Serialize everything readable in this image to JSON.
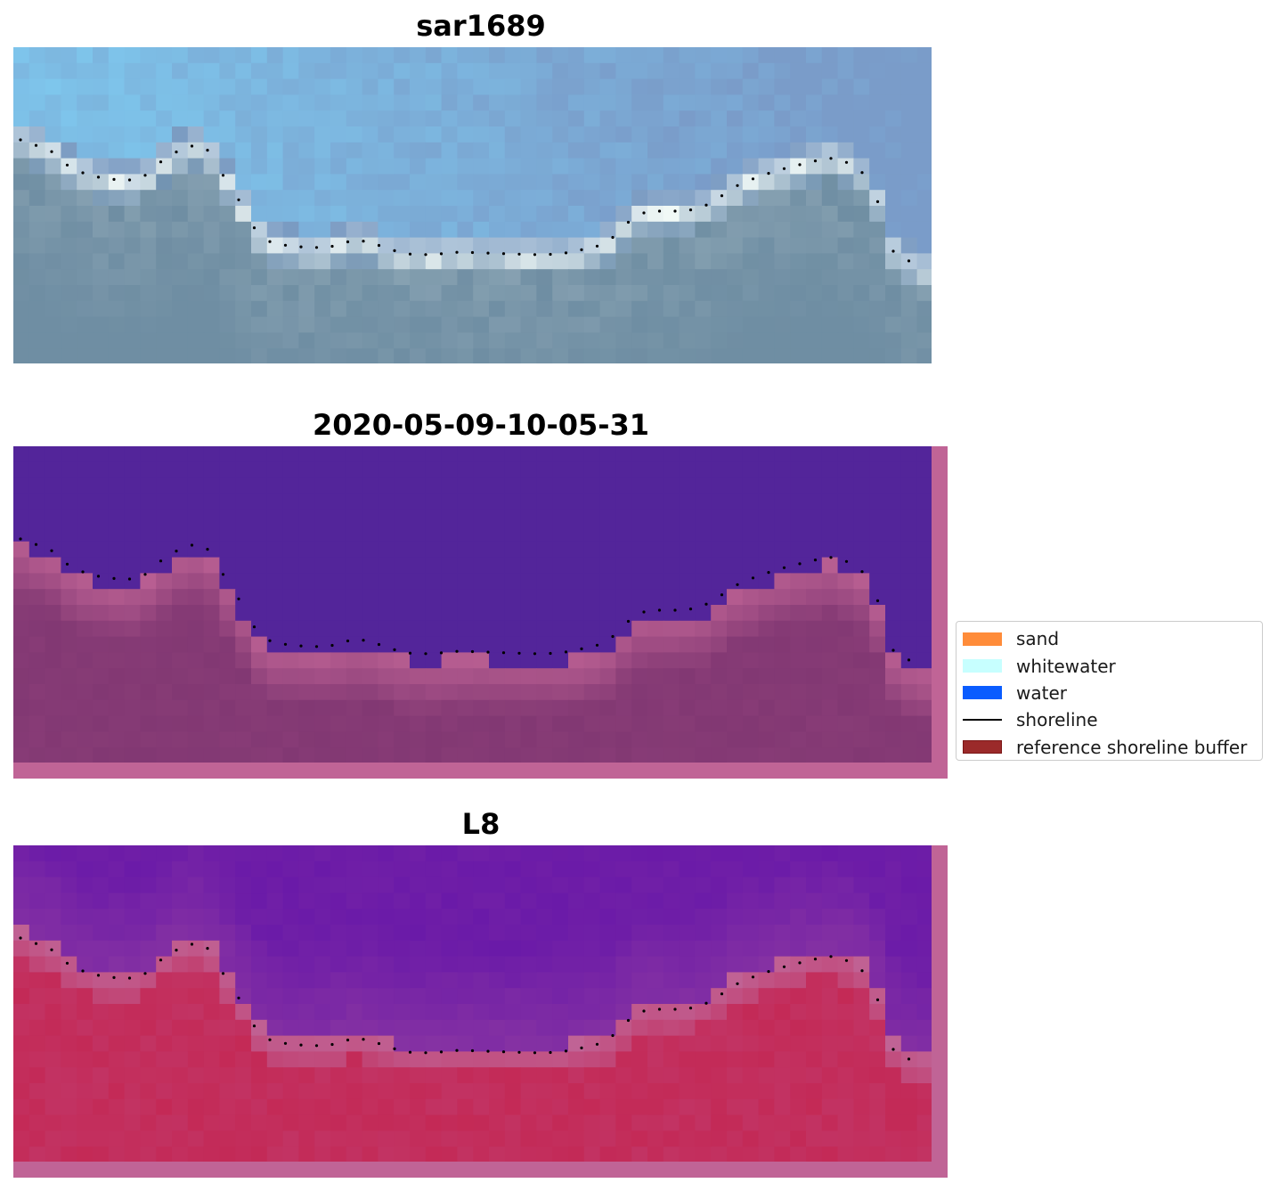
{
  "panels": [
    {
      "title": "sar1689",
      "kind": "rgb"
    },
    {
      "title": "2020-05-09-10-05-31",
      "kind": "classification"
    },
    {
      "title": "L8",
      "kind": "index"
    }
  ],
  "legend": {
    "items": [
      {
        "label": "sand",
        "color": "#ff8c3a",
        "kind": "patch"
      },
      {
        "label": "whitewater",
        "color": "#c7ffff",
        "kind": "patch"
      },
      {
        "label": "water",
        "color": "#0a5cff",
        "kind": "patch"
      },
      {
        "label": "shoreline",
        "color": "#000000",
        "kind": "line"
      },
      {
        "label": "reference shoreline buffer",
        "color": "#9b2a2a",
        "kind": "patch",
        "edge": "#7a1515"
      }
    ]
  },
  "colors": {
    "rgb_water_light": "#7ec8ee",
    "rgb_water_mid": "#7a9cc9",
    "rgb_land": "#6f8ea3",
    "rgb_foam": "#f4fbf7",
    "class_water": "#53259a",
    "class_land": "#823873",
    "buffer_edge": "#c06496",
    "index_water": "#6a1aa8",
    "index_land": "#c23363",
    "shoreline_dots": "#000000"
  }
}
